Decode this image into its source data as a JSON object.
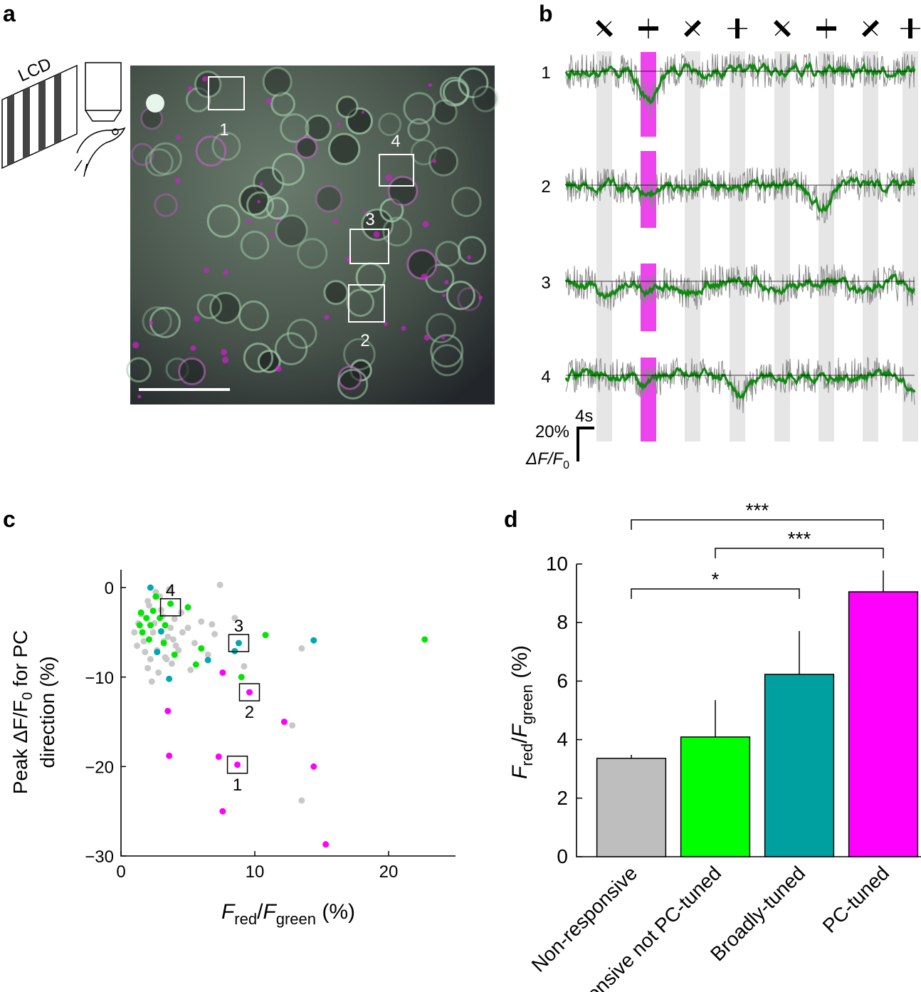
{
  "panel_labels": [
    "a",
    "b",
    "c",
    "d"
  ],
  "imaging": {
    "apparatus_label": "LCD",
    "roi_labels": [
      "1",
      "2",
      "3",
      "4"
    ]
  },
  "traces": {
    "cell_labels": [
      "1",
      "2",
      "3",
      "4"
    ],
    "time_scale": "4s",
    "amplitude_scale": "20%",
    "amplitude_unit": [
      "ΔF/F",
      "0"
    ]
  },
  "chart_data": [
    {
      "type": "scatter",
      "xlabel": [
        "F",
        "red",
        "/",
        "F",
        "green",
        " (%)"
      ],
      "ylabel": [
        "Peak ΔF/F",
        "0",
        " for PC",
        "direction (%)"
      ],
      "xlim": [
        0,
        25
      ],
      "xticks": [
        0,
        10,
        20
      ],
      "ylim": [
        -30,
        2
      ],
      "yticks": [
        {
          "value": -30,
          "label": "−30"
        },
        {
          "value": -20,
          "label": "−20"
        },
        {
          "value": -10,
          "label": "−10"
        },
        0
      ],
      "series": [
        {
          "color": "#c8c8c8",
          "x": [
            1.0,
            1.2,
            1.5,
            1.8,
            2.0,
            2.2,
            2.5,
            2.8,
            3.0,
            3.2,
            3.5,
            3.8,
            4.0,
            4.3,
            4.6,
            5.0,
            5.5,
            6.0,
            6.5,
            7.0,
            1.3,
            1.7,
            2.1,
            2.4,
            2.7,
            3.1,
            3.4,
            3.7,
            4.1,
            4.5,
            2.0,
            2.9,
            3.3,
            2.6,
            3.9,
            7.4,
            8.5,
            13.5,
            12.8,
            13.5,
            5.2,
            6.8,
            9.2,
            2.3,
            3.6
          ],
          "values": [
            -5.0,
            -6.5,
            -3.0,
            -7.2,
            -1.5,
            -8.0,
            -4.0,
            -9.5,
            -2.5,
            -6.0,
            -5.5,
            -8.5,
            -3.5,
            -7.0,
            -5.0,
            -4.5,
            -6.2,
            -3.8,
            -7.5,
            -5.2,
            -4.0,
            -6.0,
            -2.0,
            -5.0,
            -7.0,
            -3.2,
            -8.0,
            -4.5,
            -6.5,
            -2.8,
            -9.0,
            -1.0,
            -7.8,
            -0.5,
            -5.8,
            0.3,
            -3.4,
            -6.8,
            -15.4,
            -23.8,
            -9.2,
            -4.1,
            -8.8,
            -10.5,
            -0.2
          ]
        },
        {
          "color": "#00e600",
          "x": [
            22.7,
            10.8,
            9.0,
            6.0,
            5.6,
            5.0,
            4.0,
            1.4,
            1.9,
            2.4,
            2.6,
            1.6,
            2.1,
            3.2,
            2.9,
            3.7,
            3.3,
            2.2,
            1.5
          ],
          "values": [
            -5.8,
            -5.3,
            -10.0,
            -6.8,
            -8.6,
            -2.2,
            -7.5,
            -4.2,
            -3.4,
            -2.6,
            -1.0,
            -5.0,
            -5.8,
            -6.2,
            -3.4,
            -1.8,
            -4.2,
            -4.2,
            -2.8
          ]
        },
        {
          "color": "#00a8b0",
          "x": [
            2.2,
            2.7,
            3.6,
            6.5,
            8.5,
            8.8,
            14.4,
            3.0
          ],
          "values": [
            0,
            -7.2,
            -10.2,
            -8.1,
            -7.1,
            -6.2,
            -5.9,
            -4.9
          ]
        },
        {
          "color": "#ff00ff",
          "x": [
            7.6,
            9.6,
            3.5,
            12.2,
            3.6,
            7.3,
            8.7,
            14.4,
            7.6,
            15.3
          ],
          "values": [
            -9.5,
            -11.7,
            -13.8,
            -15.0,
            -18.8,
            -18.9,
            -19.8,
            -20.0,
            -25.0,
            -28.7
          ]
        }
      ],
      "annotations": [
        {
          "text": "4",
          "x": 3.7,
          "y": -2.2,
          "label_position": "above"
        },
        {
          "text": "3",
          "x": 8.8,
          "y": -6.2,
          "label_position": "above"
        },
        {
          "text": "2",
          "x": 9.6,
          "y": -11.7,
          "label_position": "below"
        },
        {
          "text": "1",
          "x": 8.7,
          "y": -19.8,
          "label_position": "below"
        }
      ]
    },
    {
      "type": "bar",
      "ylabel": [
        "F",
        "red",
        "/",
        "F",
        "green",
        " (%)"
      ],
      "categories": [
        "Non-responsive",
        "Responsive not PC-tuned",
        "Broadly-tuned",
        "PC-tuned"
      ],
      "values": [
        3.36,
        4.09,
        6.23,
        9.05
      ],
      "errors": [
        0.12,
        1.26,
        1.48,
        0.73
      ],
      "colors": [
        "#bebebe",
        "#00ff00",
        "#00a0a0",
        "#ff00ff"
      ],
      "ylim": [
        0,
        10
      ],
      "yticks": [
        0,
        2,
        4,
        6,
        8,
        10
      ],
      "significance": [
        {
          "from": "Non-responsive",
          "to": "PC-tuned",
          "label": "***"
        },
        {
          "from": "Responsive not PC-tuned",
          "to": "PC-tuned",
          "label": "***"
        },
        {
          "from": "Non-responsive",
          "to": "Broadly-tuned",
          "label": "*"
        }
      ]
    }
  ]
}
